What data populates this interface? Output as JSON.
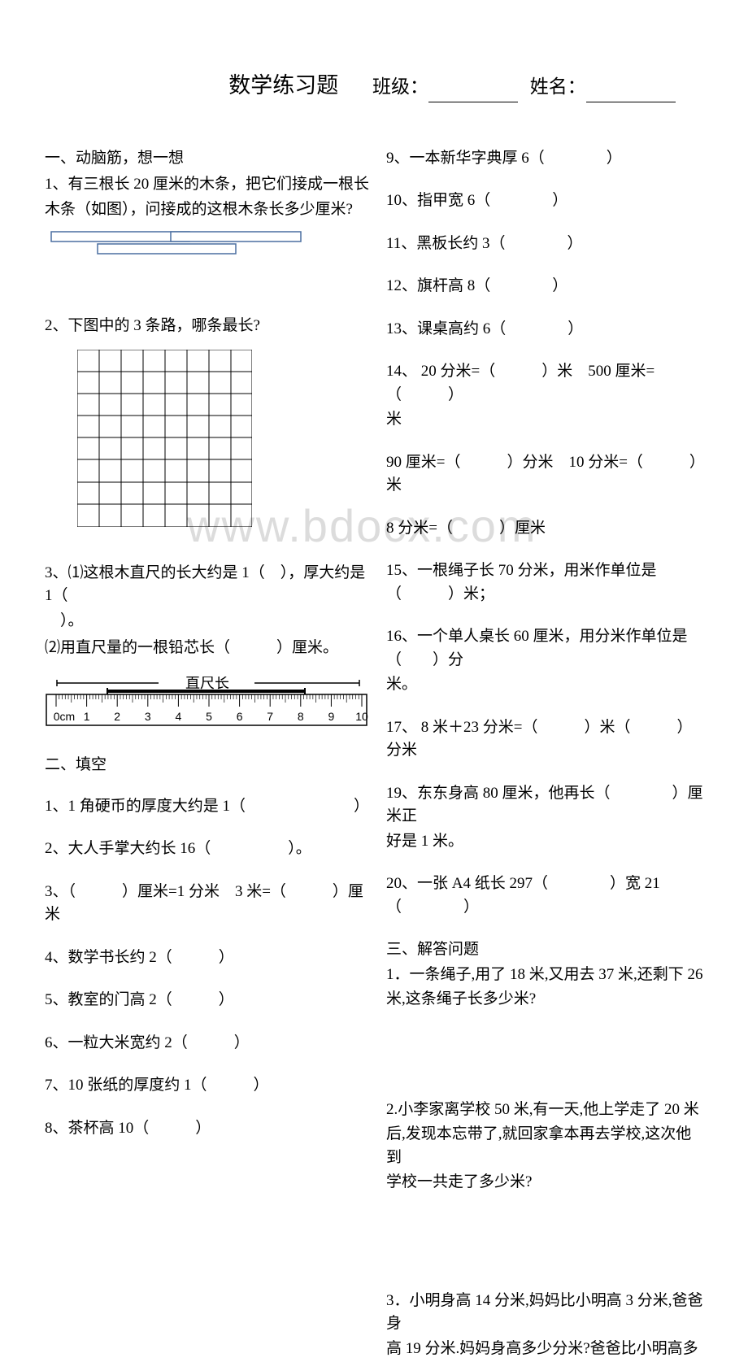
{
  "watermark": "www.bdocx.com",
  "header": {
    "title": "数学练习题",
    "class_label": "班级：",
    "name_label": "姓名："
  },
  "left": {
    "section1_head": "一、动脑筋，想一想",
    "q1_l1": "1、有三根长 20 厘米的木条，把它们接成一根长",
    "q1_l2": "木条（如图），问接成的这根木条长多少厘米?",
    "q2": "2、下图中的 3 条路，哪条最长?",
    "q3_l1": "3、⑴这根木直尺的长大约是 1（　），厚大约是 1（",
    "q3_l2": "　）。",
    "q3_l3": "⑵用直尺量的一根铅芯长（　　　）厘米。",
    "ruler_label": "直尺长",
    "section2_head": "二、填空",
    "f1": "1、1 角硬币的厚度大约是 1（　　　　　　　）",
    "f2": "2、大人手掌大约长 16（　　　　　）。",
    "f3": "3、（　　　）厘米=1 分米　3 米=（　　　）厘米",
    "f4": "4、数学书长约 2（　　　）",
    "f5": "5、教室的门高 2（　　　）",
    "f6": "6、一粒大米宽约 2（　　　）",
    "f7": "7、10 张纸的厚度约 1（　　　）",
    "f8": "8、茶杯高 10（　　　）"
  },
  "right": {
    "f9": "9、一本新华字典厚 6（　　　　）",
    "f10": "10、指甲宽 6（　　　　）",
    "f11": "11、黑板长约 3（　　　　）",
    "f12": "12、旗杆高 8（　　　　）",
    "f13": "13、课桌高约 6（　　　　）",
    "f14_l1": "14、 20 分米=（　　　）米　500 厘米=（　　　）",
    "f14_l2": "米",
    "f14b": "90 厘米=（　　　）分米　10 分米=（　　　）米",
    "f14c": " 8 分米=（　　　）厘米",
    "f15": "15、一根绳子长 70 分米，用米作单位是（　　　）米；",
    "f16_l1": "16、一个单人桌长 60 厘米，用分米作单位是（　　）分",
    "f16_l2": "米。",
    "f17": "17、  8 米＋23 分米=（　　　）米（　　　）分米",
    "f19_l1": "19、东东身高 80 厘米，他再长（　　　　）厘米正",
    "f19_l2": "好是 1 米。",
    "f20": "20、一张 A4 纸长 297（　　　　）宽 21（　　　　）",
    "section3_head": "三、解答问题",
    "p1_l1": "1．一条绳子,用了 18 米,又用去 37 米,还剩下 26",
    "p1_l2": "米,这条绳子长多少米?",
    "p2_l1": "2.小李家离学校 50 米,有一天,他上学走了 20 米",
    "p2_l2": "后,发现本忘带了,就回家拿本再去学校,这次他到",
    "p2_l3": "学校一共走了多少米?",
    "p3_l1": "3．小明身高 14 分米,妈妈比小明高 3 分米,爸爸身",
    "p3_l2": "高 19 分米.妈妈身高多少分米?爸爸比小明高多"
  },
  "ruler": {
    "ticks": [
      "0cm",
      "1",
      "2",
      "3",
      "4",
      "5",
      "6",
      "7",
      "8",
      "9",
      "10"
    ]
  },
  "colors": {
    "text": "#000000",
    "stick_border": "#4a6ea0",
    "stick_fill": "#ffffff"
  }
}
